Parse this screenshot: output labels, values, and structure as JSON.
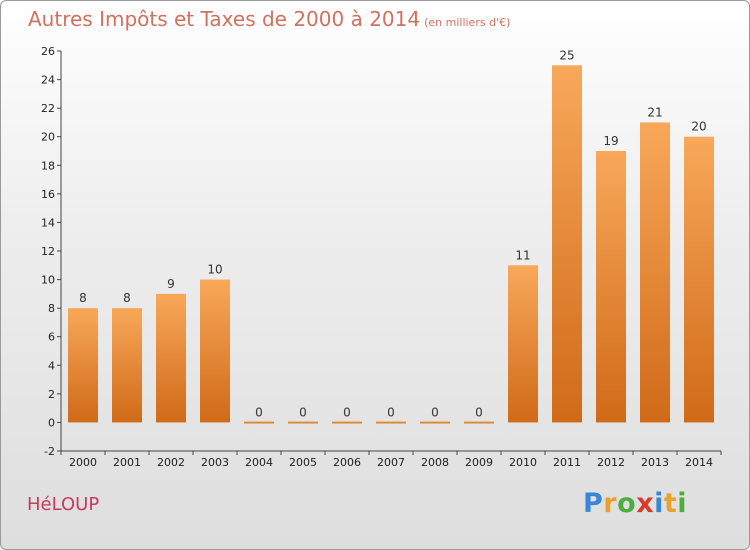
{
  "header": {
    "title": "Autres Impôts et Taxes de 2000 à 2014",
    "unit": "(en milliers d'€)"
  },
  "commune": "HéLOUP",
  "logo": {
    "letters": [
      "P",
      "r",
      "o",
      "x",
      "i",
      "t",
      "i"
    ],
    "colors": [
      "#3a86d6",
      "#e8a12c",
      "#4cae3c",
      "#d83c2c",
      "#3a86d6",
      "#e8a12c",
      "#4cae3c"
    ]
  },
  "chart_data": {
    "type": "bar",
    "title": "Autres Impôts et Taxes de 2000 à 2014",
    "subtitle": "(en milliers d'€)",
    "xlabel": "",
    "ylabel": "",
    "categories": [
      "2000",
      "2001",
      "2002",
      "2003",
      "2004",
      "2005",
      "2006",
      "2007",
      "2008",
      "2009",
      "2010",
      "2011",
      "2012",
      "2013",
      "2014"
    ],
    "values": [
      8,
      8,
      9,
      10,
      0,
      0,
      0,
      0,
      0,
      0,
      11,
      25,
      19,
      21,
      20
    ],
    "ylim": [
      -2,
      26
    ],
    "yticks": [
      -2,
      0,
      2,
      4,
      6,
      8,
      10,
      12,
      14,
      16,
      18,
      20,
      22,
      24,
      26
    ],
    "grid": false,
    "bar_color_top": "#f8a85a",
    "bar_color_bottom": "#d06a18"
  }
}
